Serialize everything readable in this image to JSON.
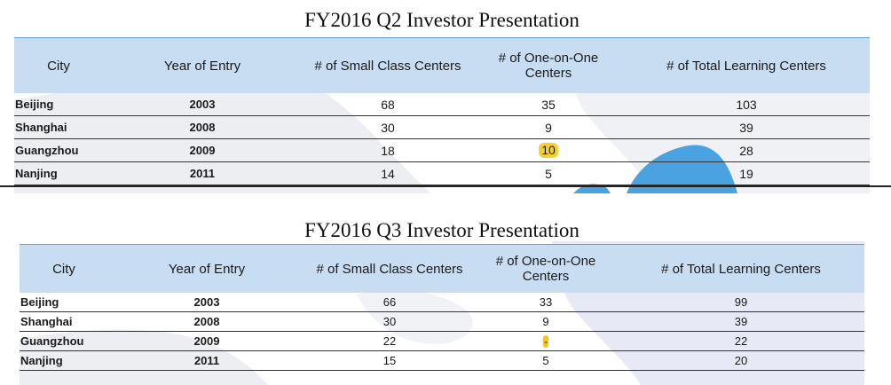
{
  "q2": {
    "title": "FY2016 Q2 Investor Presentation",
    "headers": [
      "City",
      "Year of Entry",
      "# of Small Class Centers",
      "# of One-on-One Centers",
      "# of Total Learning Centers"
    ],
    "rows": [
      {
        "city": "Beijing",
        "year": "2003",
        "small": "68",
        "one": "35",
        "total": "103"
      },
      {
        "city": "Shanghai",
        "year": "2008",
        "small": "30",
        "one": "9",
        "total": "39"
      },
      {
        "city": "Guangzhou",
        "year": "2009",
        "small": "18",
        "one": "10",
        "total": "28"
      },
      {
        "city": "Nanjing",
        "year": "2011",
        "small": "14",
        "one": "5",
        "total": "19"
      }
    ],
    "highlight_color": "#f5d033"
  },
  "q3": {
    "title": "FY2016 Q3 Investor Presentation",
    "headers": [
      "City",
      "Year of Entry",
      "# of Small Class Centers",
      "# of One-on-One Centers",
      "# of Total Learning Centers"
    ],
    "rows": [
      {
        "city": "Beijing",
        "year": "2003",
        "small": "66",
        "one": "33",
        "total": "99"
      },
      {
        "city": "Shanghai",
        "year": "2008",
        "small": "30",
        "one": "9",
        "total": "39"
      },
      {
        "city": "Guangzhou",
        "year": "2009",
        "small": "22",
        "one": "-",
        "total": "22"
      },
      {
        "city": "Nanjing",
        "year": "2011",
        "small": "15",
        "one": "5",
        "total": "20"
      }
    ],
    "highlight_color": "#f5c518"
  },
  "colors": {
    "header_fill": "#c8dcf2",
    "header_rule": "#6b9fd4",
    "map_land": "#eceef1",
    "map_water": "#4aa3e0"
  }
}
